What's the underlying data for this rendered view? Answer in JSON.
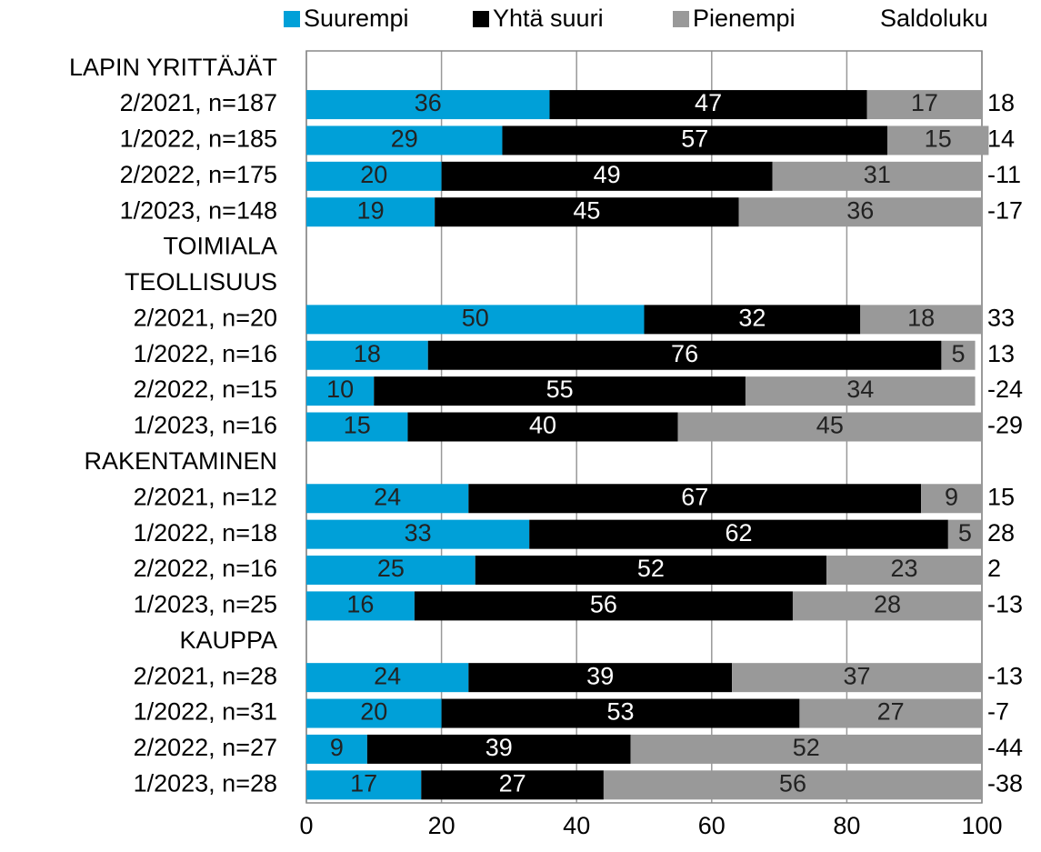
{
  "chart_data": {
    "type": "stacked-bar-horizontal",
    "categories": [
      "LAPIN YRITTÄJÄT",
      "2/2021, n=187",
      "1/2022, n=185",
      "2/2022, n=175",
      "1/2023, n=148",
      "TOIMIALA",
      "TEOLLISUUS",
      "2/2021, n=20",
      "1/2022, n=16",
      "2/2022, n=15",
      "1/2023, n=16",
      "RAKENTAMINEN",
      "2/2021, n=12",
      "1/2022, n=18",
      "2/2022, n=16",
      "1/2023, n=25",
      "KAUPPA",
      "2/2021, n=28",
      "1/2022, n=31",
      "2/2022, n=27",
      "1/2023, n=28"
    ],
    "series": [
      {
        "name": "Suurempi",
        "color": "#00a0d8",
        "values": [
          null,
          36,
          29,
          20,
          19,
          null,
          null,
          50,
          18,
          10,
          15,
          null,
          24,
          33,
          25,
          16,
          null,
          24,
          20,
          9,
          17
        ]
      },
      {
        "name": "Yhtä suuri",
        "color": "#000000",
        "values": [
          null,
          47,
          57,
          49,
          45,
          null,
          null,
          32,
          76,
          55,
          40,
          null,
          67,
          62,
          52,
          56,
          null,
          39,
          53,
          39,
          27
        ]
      },
      {
        "name": "Pienempi",
        "color": "#999999",
        "values": [
          null,
          17,
          15,
          31,
          36,
          null,
          null,
          18,
          5,
          34,
          45,
          null,
          9,
          5,
          23,
          28,
          null,
          37,
          27,
          52,
          56
        ]
      }
    ],
    "saldo_label": "Saldoluku",
    "saldo": [
      null,
      18,
      14,
      -11,
      -17,
      null,
      null,
      33,
      13,
      -24,
      -29,
      null,
      15,
      28,
      2,
      -13,
      null,
      -13,
      -7,
      -44,
      -38
    ],
    "xlim": [
      0,
      100
    ],
    "xticks": [
      0,
      20,
      40,
      60,
      80,
      100
    ],
    "grid": true
  }
}
